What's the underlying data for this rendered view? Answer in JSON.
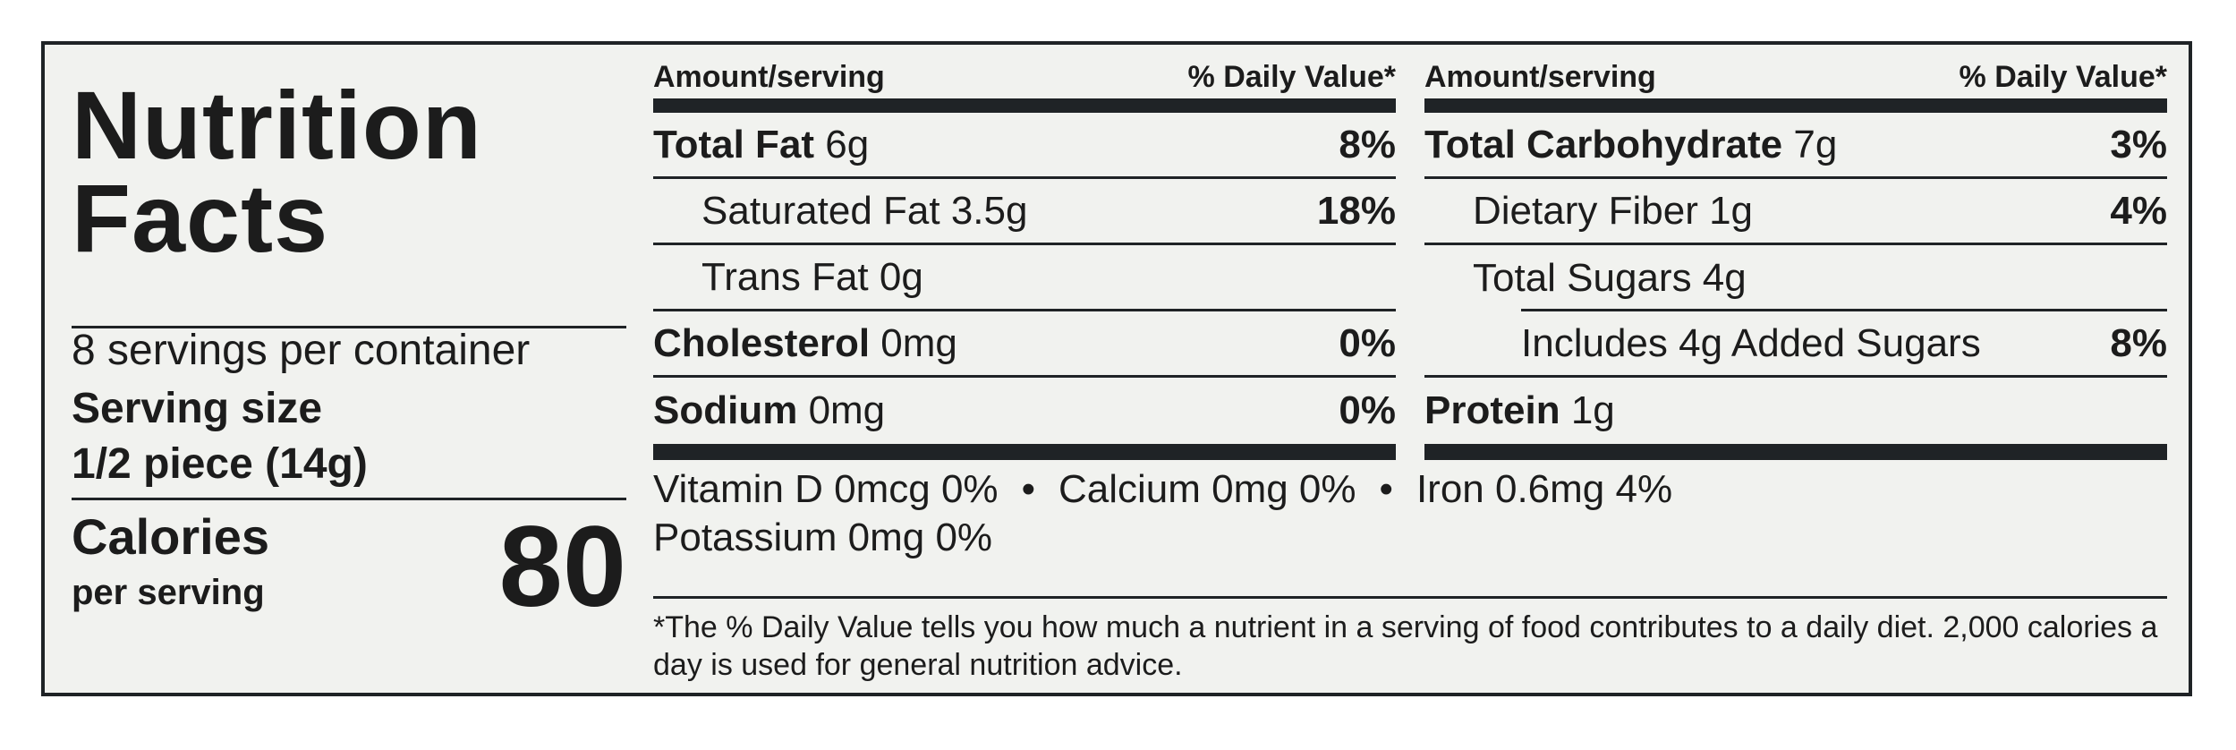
{
  "title_line1": "Nutrition",
  "title_line2": "Facts",
  "servings_per_container": "8 servings per container",
  "serving_size_label": "Serving size",
  "serving_size_value": "1/2 piece (14g)",
  "calories_label": "Calories",
  "calories_sub": "per serving",
  "calories_value": "80",
  "column_headers": {
    "amount": "Amount/serving",
    "daily_value": "% Daily Value*"
  },
  "left_rows": [
    {
      "name": "Total Fat",
      "amount": "6g",
      "dv": "8%"
    },
    {
      "name": "Saturated Fat 3.5g",
      "dv": "18%"
    },
    {
      "name": "Trans Fat 0g",
      "dv": ""
    },
    {
      "name": "Cholesterol",
      "amount": "0mg",
      "dv": "0%"
    },
    {
      "name": "Sodium",
      "amount": "0mg",
      "dv": "0%"
    }
  ],
  "right_rows": [
    {
      "name": "Total Carbohydrate",
      "amount": "7g",
      "dv": "3%"
    },
    {
      "name": "Dietary Fiber 1g",
      "dv": "4%"
    },
    {
      "name": "Total Sugars 4g",
      "dv": ""
    },
    {
      "name": "Includes 4g Added Sugars",
      "dv": "8%"
    },
    {
      "name": "Protein",
      "amount": "1g",
      "dv": ""
    }
  ],
  "vitamins": {
    "vitamin_d": "Vitamin D 0mcg 0%",
    "calcium": "Calcium 0mg 0%",
    "iron": "Iron 0.6mg 4%",
    "potassium": "Potassium 0mg 0%",
    "separator": "•"
  },
  "footnote": "*The % Daily Value tells you how much a nutrient in a serving of food contributes to a daily diet. 2,000 calories a day is used for general nutrition advice."
}
